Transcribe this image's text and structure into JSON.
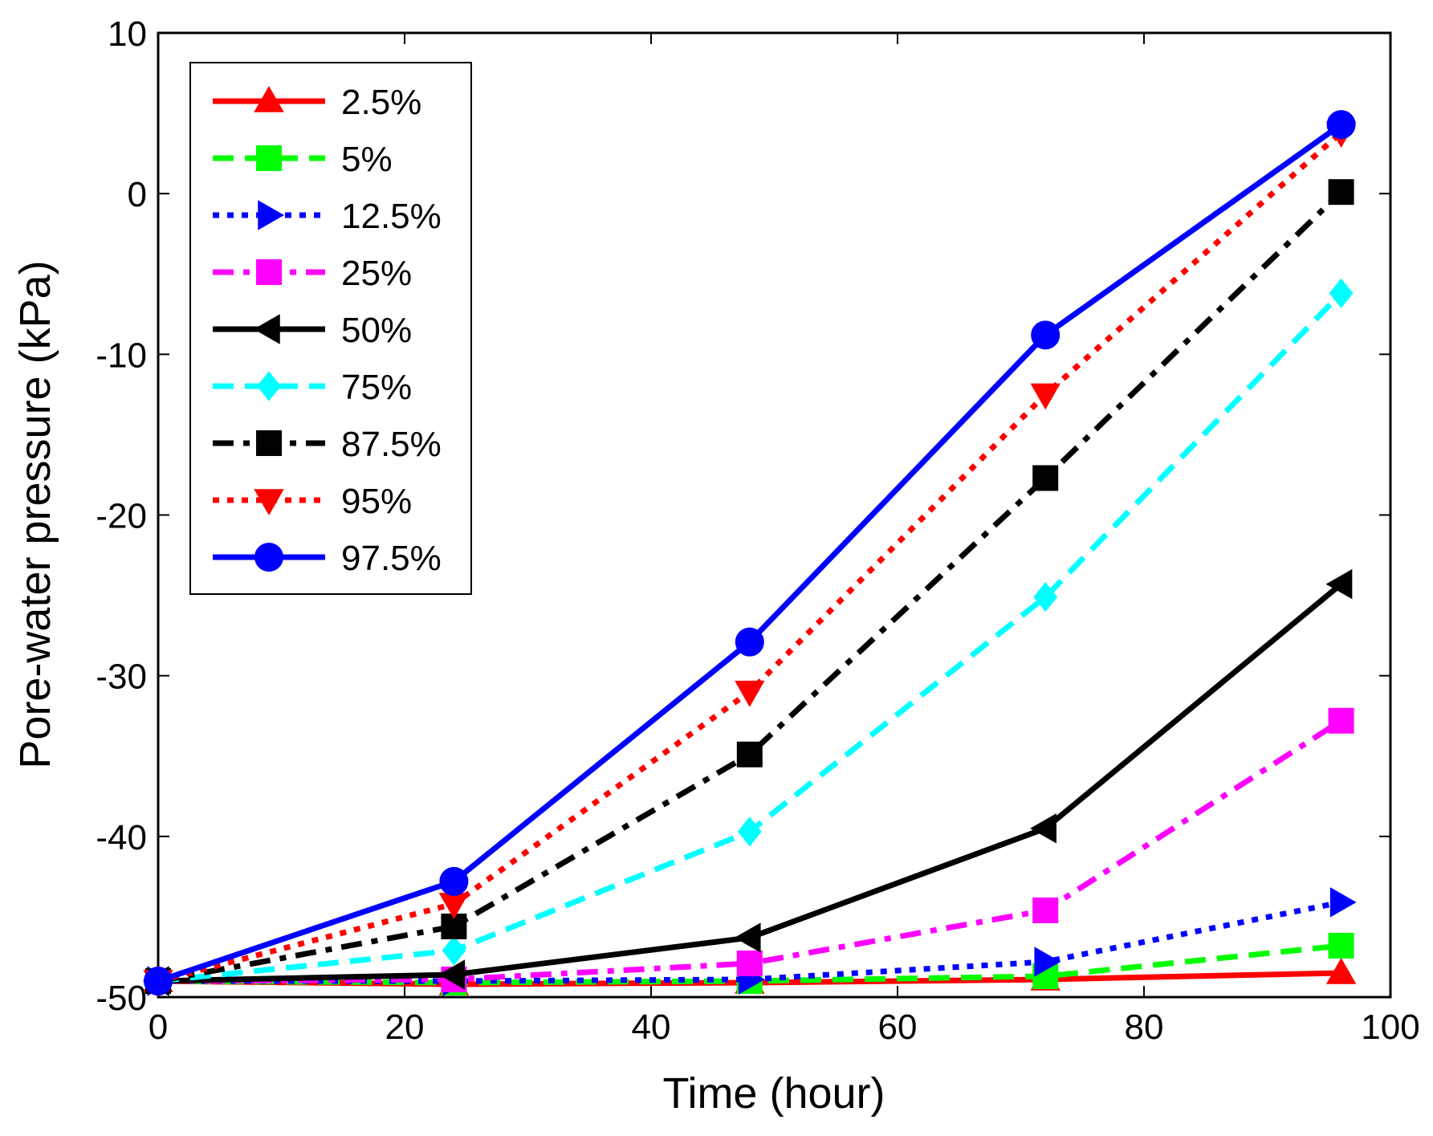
{
  "chart_data": {
    "type": "line",
    "title": "",
    "xlabel": "Time (hour)",
    "ylabel": "Pore-water pressure (kPa)",
    "xlim": [
      0,
      100
    ],
    "ylim": [
      -50,
      10
    ],
    "x_ticks": [
      0,
      20,
      40,
      60,
      80,
      100
    ],
    "y_ticks": [
      -50,
      -40,
      -30,
      -20,
      -10,
      0,
      10
    ],
    "grid": false,
    "legend_position": "top-left",
    "x": [
      0,
      24,
      48,
      72,
      96
    ],
    "series": [
      {
        "name": "2.5%",
        "color": "#ff0000",
        "dash": "solid",
        "marker": "triangle-up",
        "values": [
          -49.0,
          -49.2,
          -49.1,
          -48.9,
          -48.5
        ]
      },
      {
        "name": "5%",
        "color": "#00ff00",
        "dash": "dashed",
        "marker": "square",
        "values": [
          -49.0,
          -49.1,
          -49.0,
          -48.7,
          -46.8
        ]
      },
      {
        "name": "12.5%",
        "color": "#0000ff",
        "dash": "dotted",
        "marker": "triangle-right",
        "values": [
          -49.0,
          -49.0,
          -48.9,
          -47.8,
          -44.1
        ]
      },
      {
        "name": "25%",
        "color": "#ff00ff",
        "dash": "dashdot",
        "marker": "square",
        "values": [
          -49.0,
          -48.9,
          -47.9,
          -44.6,
          -32.8
        ]
      },
      {
        "name": "50%",
        "color": "#000000",
        "dash": "solid",
        "marker": "triangle-left",
        "values": [
          -49.0,
          -48.6,
          -46.3,
          -39.5,
          -24.3
        ]
      },
      {
        "name": "75%",
        "color": "#00ffff",
        "dash": "dashed",
        "marker": "diamond",
        "values": [
          -49.0,
          -47.1,
          -39.7,
          -25.1,
          -6.2
        ]
      },
      {
        "name": "87.5%",
        "color": "#000000",
        "dash": "dashdot",
        "marker": "square",
        "values": [
          -49.0,
          -45.6,
          -34.9,
          -17.7,
          0.1
        ]
      },
      {
        "name": "95%",
        "color": "#ff0000",
        "dash": "dotted",
        "marker": "triangle-down",
        "values": [
          -49.0,
          -44.2,
          -31.0,
          -12.5,
          3.8
        ]
      },
      {
        "name": "97.5%",
        "color": "#0000ff",
        "dash": "solid",
        "marker": "circle",
        "values": [
          -49.0,
          -42.8,
          -27.9,
          -8.8,
          4.3
        ]
      }
    ]
  }
}
